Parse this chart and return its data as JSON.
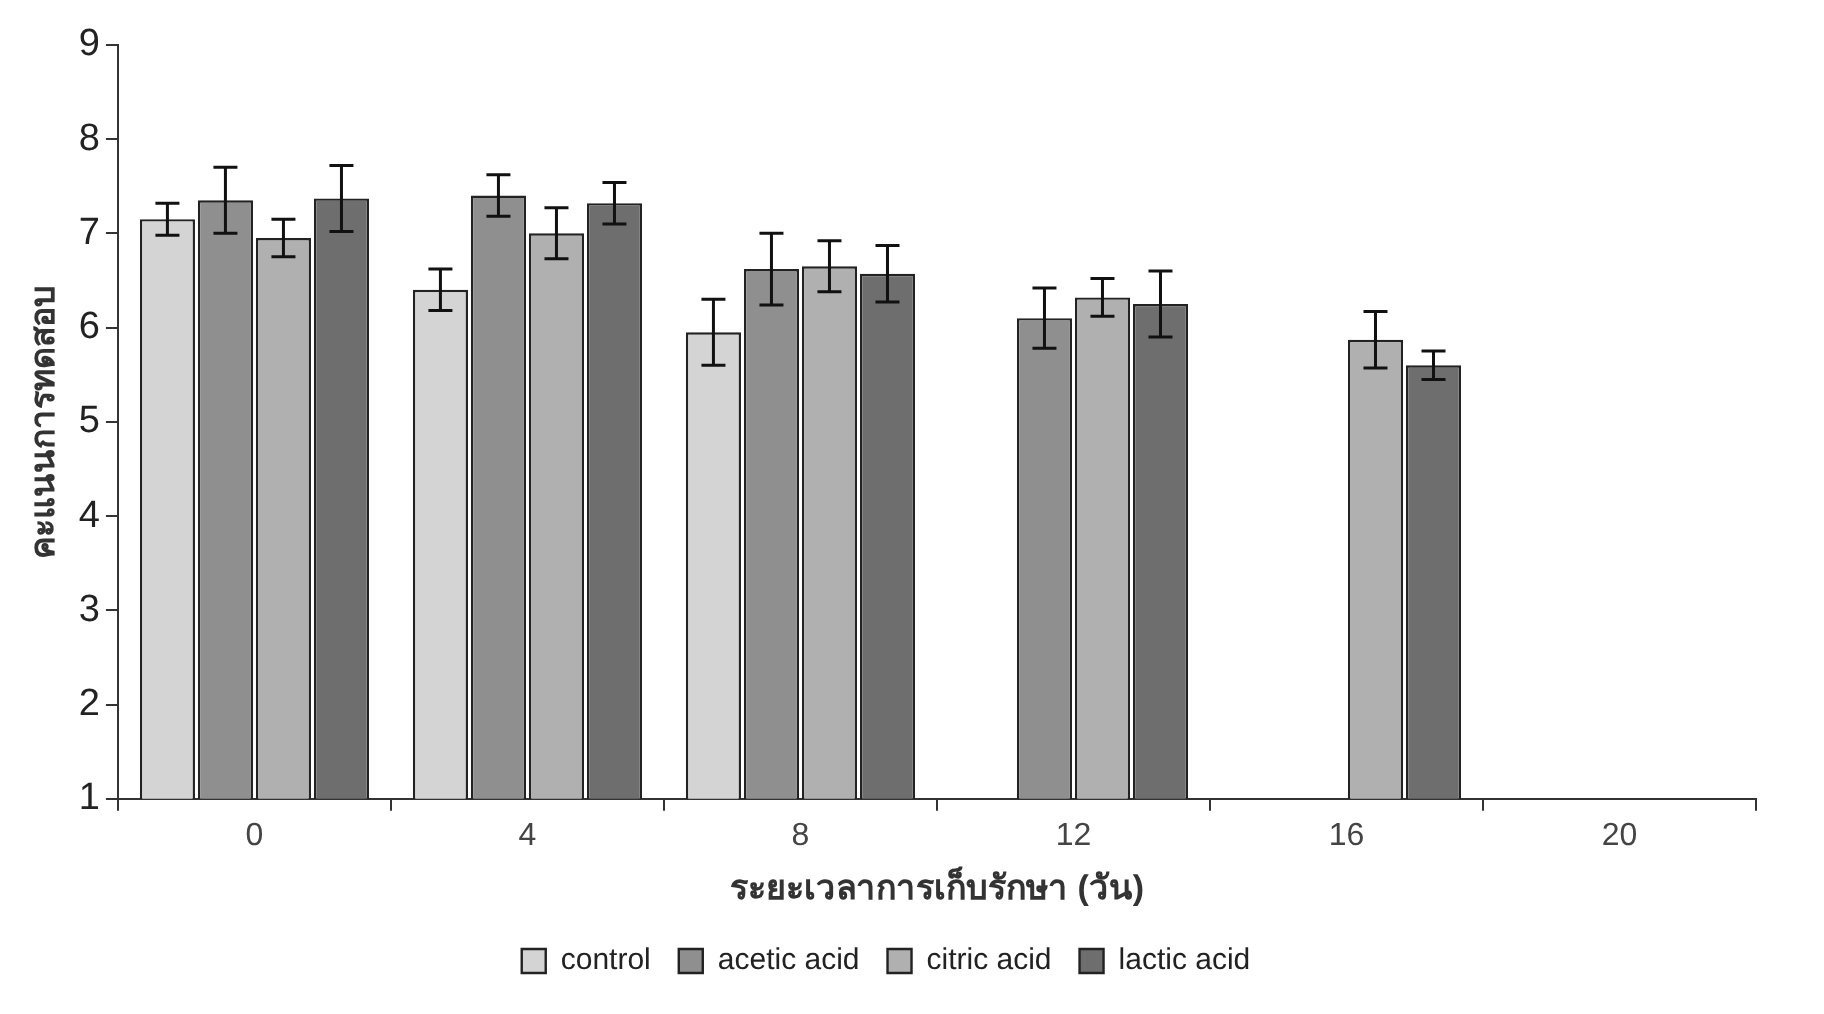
{
  "chart_data": {
    "type": "bar",
    "xlabel": "ระยะเวลาการเก็บรักษา (วัน)",
    "ylabel": "คะแนนการทดสอบ",
    "categories": [
      "0",
      "4",
      "8",
      "12",
      "16",
      "20"
    ],
    "series": [
      {
        "name": "control",
        "color": "#d4d4d4",
        "values": [
          7.15,
          6.4,
          5.95,
          null,
          null,
          null
        ],
        "errors": [
          0.17,
          0.22,
          0.35,
          null,
          null,
          null
        ]
      },
      {
        "name": "acetic acid",
        "color": "#8f8f8f",
        "values": [
          7.35,
          7.4,
          6.62,
          6.1,
          null,
          null
        ],
        "errors": [
          0.35,
          0.22,
          0.38,
          0.32,
          null,
          null
        ]
      },
      {
        "name": "citric acid",
        "color": "#b0b0b0",
        "values": [
          6.95,
          7.0,
          6.65,
          6.32,
          5.87,
          null
        ],
        "errors": [
          0.2,
          0.27,
          0.27,
          0.2,
          0.3,
          null
        ]
      },
      {
        "name": "lactic acid",
        "color": "#6e6e6e",
        "values": [
          7.37,
          7.32,
          6.57,
          6.25,
          5.6,
          null
        ],
        "errors": [
          0.35,
          0.22,
          0.3,
          0.35,
          0.15,
          null
        ]
      }
    ],
    "ylim": [
      1,
      9
    ],
    "yticks": [
      1,
      2,
      3,
      4,
      5,
      6,
      7,
      8,
      9
    ],
    "legend": "bottom"
  }
}
